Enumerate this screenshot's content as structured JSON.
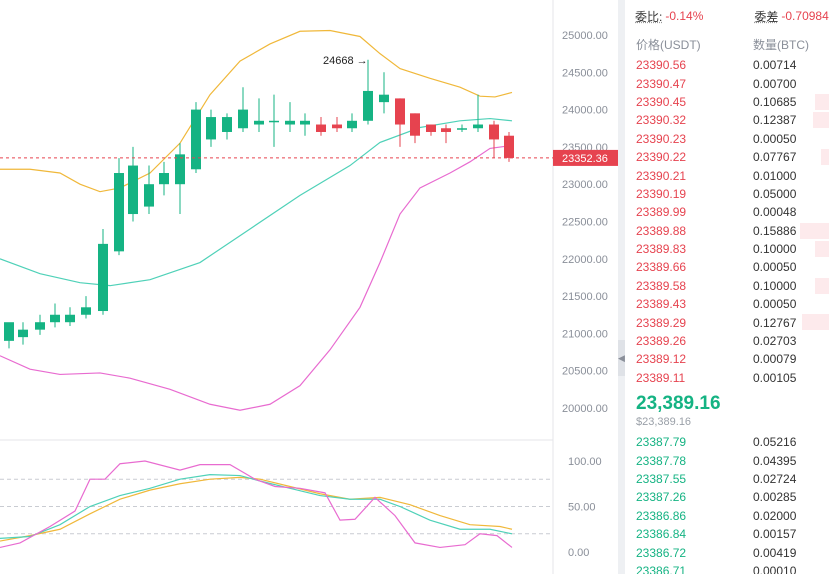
{
  "chart": {
    "price_axis_labels": [
      "25000.00",
      "24500.00",
      "24000.00",
      "23500.00",
      "23000.00",
      "22500.00",
      "22000.00",
      "21500.00",
      "21000.00",
      "20500.00",
      "20000.00"
    ],
    "price_axis_values": [
      25000,
      24500,
      24000,
      23500,
      23000,
      22500,
      22000,
      21500,
      21000,
      20500,
      20000
    ],
    "current_price_label": "23352.36",
    "current_price": 23352.36,
    "high_annotation": "24668 →",
    "high_value": 24668,
    "oscillator_labels": [
      "100.00",
      "50.00",
      "0.00"
    ],
    "oscillator_values": [
      100,
      50,
      0
    ],
    "colors": {
      "up": "#15b383",
      "down": "#e6434f",
      "upper_band": "#f0b83a",
      "middle_band": "#4fd1b8",
      "lower_band": "#e86bd0",
      "osc_k": "#f0b83a",
      "osc_d": "#4fd1b8",
      "osc_j": "#e86bd0"
    }
  },
  "book": {
    "ratio_label": "委比:",
    "ratio_value": "-0.14%",
    "diff_label": "委差",
    "diff_value": "-0.70984",
    "header_price": "价格(USDT)",
    "header_qty": "数量(BTC)",
    "asks": [
      {
        "price": "23390.56",
        "qty": "0.00714",
        "depth": 0
      },
      {
        "price": "23390.47",
        "qty": "0.00700",
        "depth": 0
      },
      {
        "price": "23390.45",
        "qty": "0.10685",
        "depth": 0.07
      },
      {
        "price": "23390.32",
        "qty": "0.12387",
        "depth": 0.08
      },
      {
        "price": "23390.23",
        "qty": "0.00050",
        "depth": 0
      },
      {
        "price": "23390.22",
        "qty": "0.07767",
        "depth": 0.04
      },
      {
        "price": "23390.21",
        "qty": "0.01000",
        "depth": 0
      },
      {
        "price": "23390.19",
        "qty": "0.05000",
        "depth": 0
      },
      {
        "price": "23389.99",
        "qty": "0.00048",
        "depth": 0
      },
      {
        "price": "23389.88",
        "qty": "0.15886",
        "depth": 0.14
      },
      {
        "price": "23389.83",
        "qty": "0.10000",
        "depth": 0.07
      },
      {
        "price": "23389.66",
        "qty": "0.00050",
        "depth": 0
      },
      {
        "price": "23389.58",
        "qty": "0.10000",
        "depth": 0.07
      },
      {
        "price": "23389.43",
        "qty": "0.00050",
        "depth": 0
      },
      {
        "price": "23389.29",
        "qty": "0.12767",
        "depth": 0.13
      },
      {
        "price": "23389.26",
        "qty": "0.02703",
        "depth": 0
      },
      {
        "price": "23389.12",
        "qty": "0.00079",
        "depth": 0
      },
      {
        "price": "23389.11",
        "qty": "0.00105",
        "depth": 0
      }
    ],
    "last_price": "23,389.16",
    "last_price_usd": "$23,389.16",
    "bids": [
      {
        "price": "23387.79",
        "qty": "0.05216"
      },
      {
        "price": "23387.78",
        "qty": "0.04395"
      },
      {
        "price": "23387.55",
        "qty": "0.02724"
      },
      {
        "price": "23387.26",
        "qty": "0.00285"
      },
      {
        "price": "23386.86",
        "qty": "0.02000"
      },
      {
        "price": "23386.84",
        "qty": "0.00157"
      },
      {
        "price": "23386.72",
        "qty": "0.00419"
      },
      {
        "price": "23386.71",
        "qty": "0.00010"
      }
    ]
  }
}
